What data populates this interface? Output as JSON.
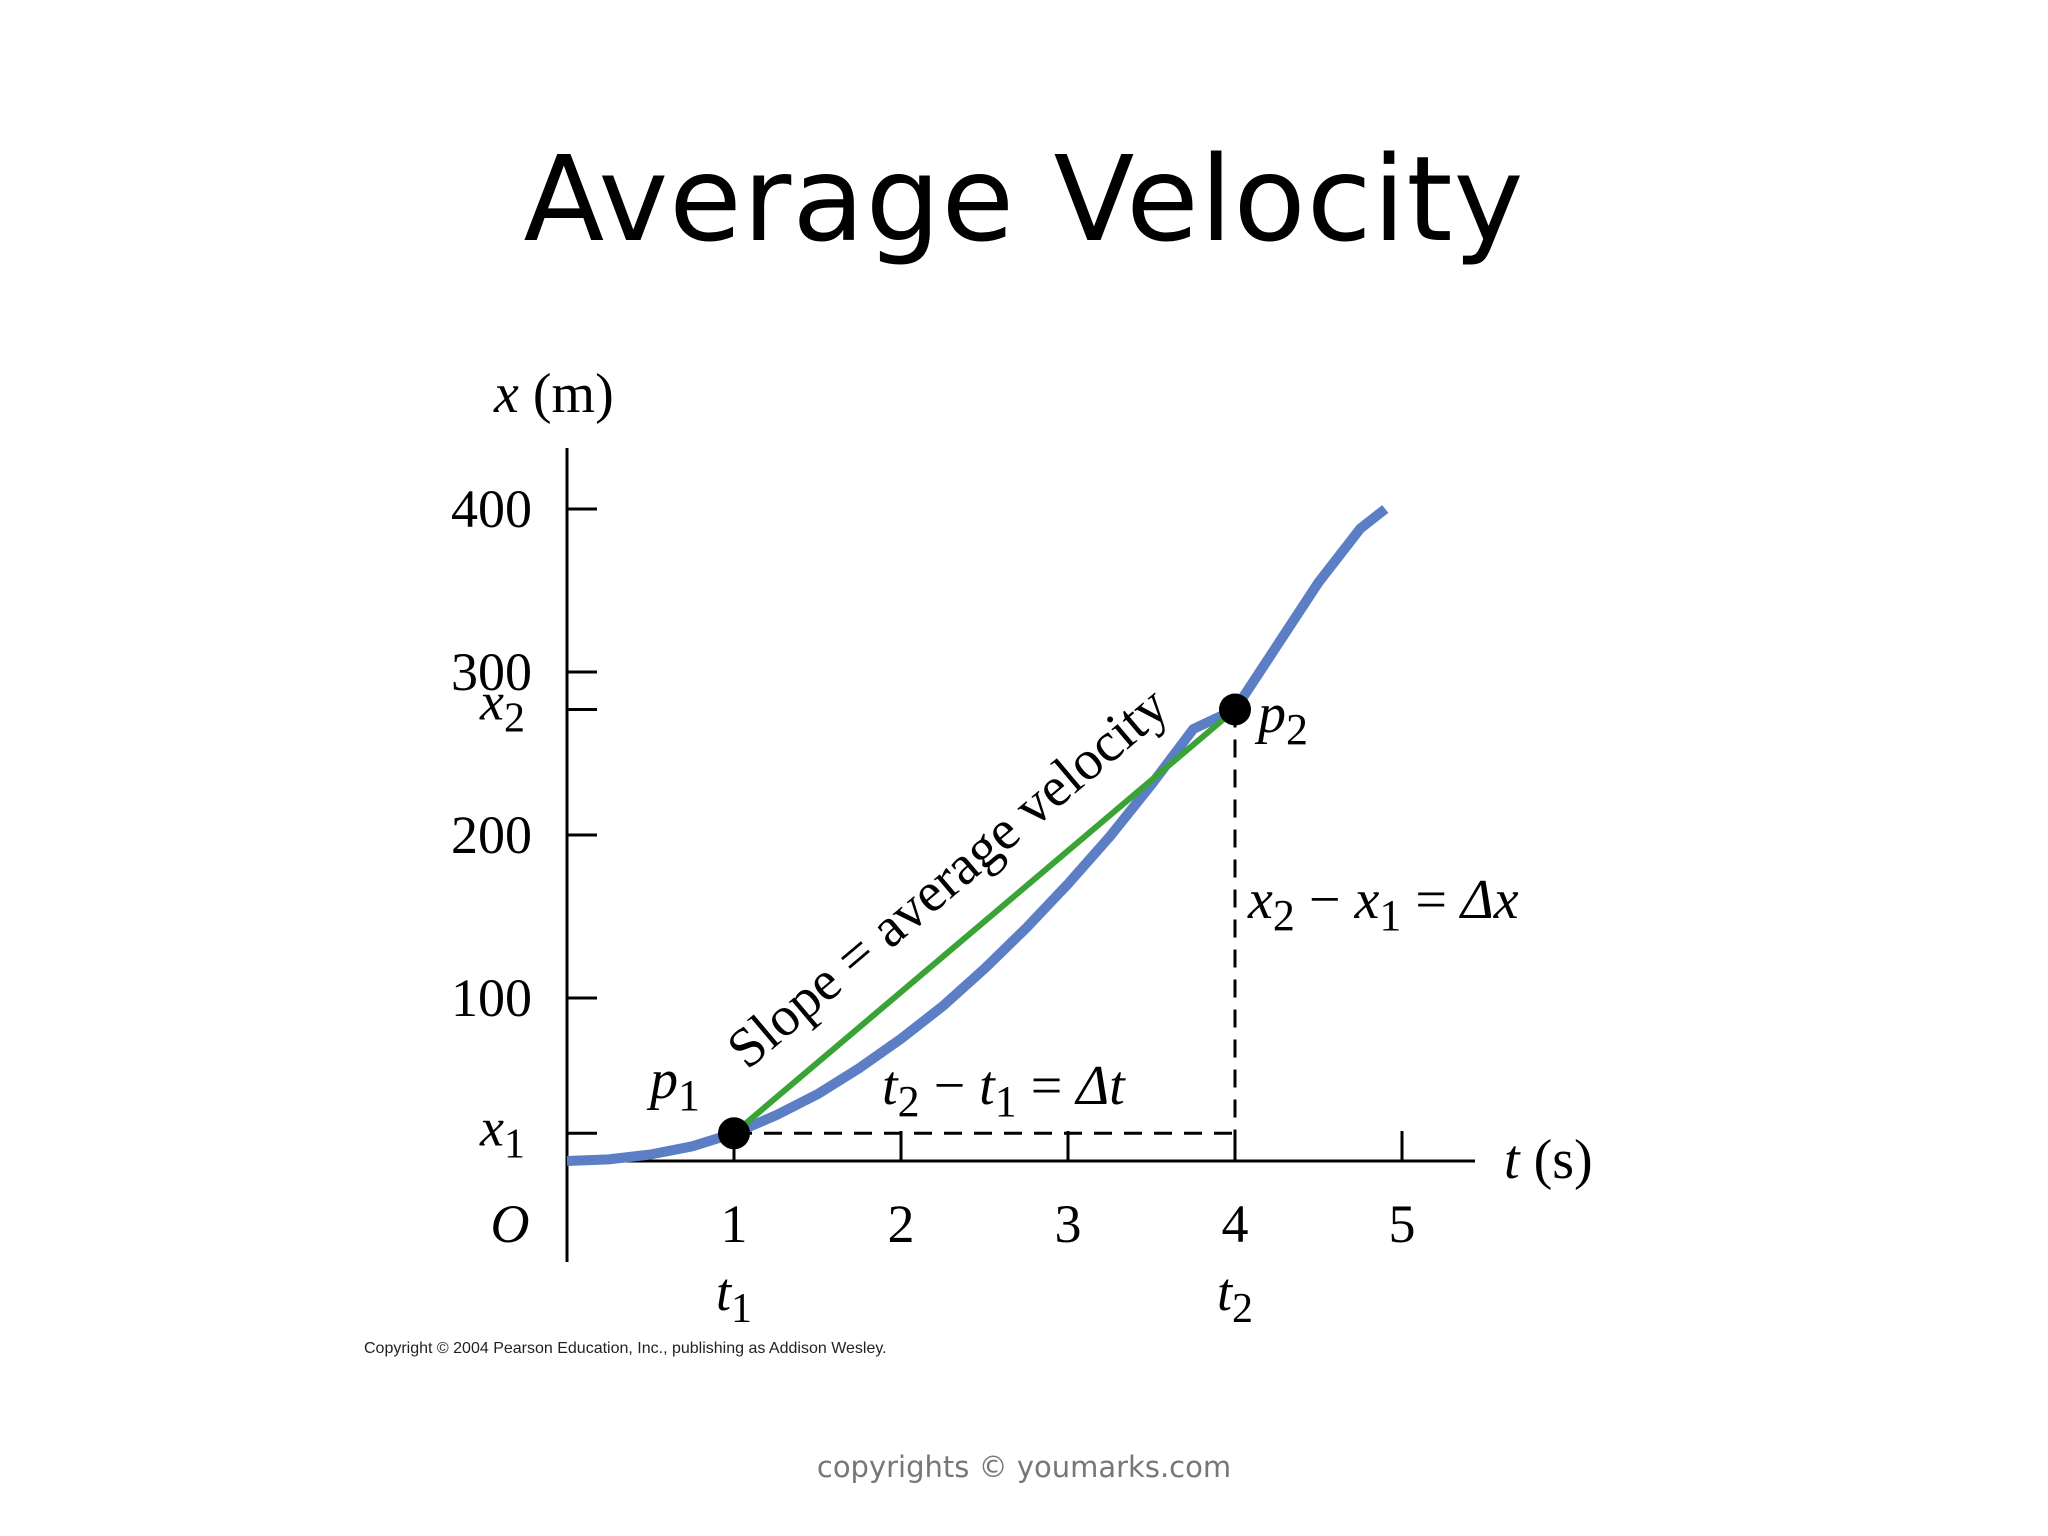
{
  "slide": {
    "title": "Average Velocity",
    "figure_copyright": "Copyright © 2004 Pearson Education, Inc., publishing as Addison Wesley.",
    "footer": "copyrights © youmarks.com"
  },
  "chart_data": {
    "type": "line",
    "title": "",
    "xlabel": "t (s)",
    "ylabel": "x (m)",
    "xlim": [
      0,
      5.4
    ],
    "ylim": [
      -20,
      440
    ],
    "x_ticks": [
      1,
      2,
      3,
      4,
      5
    ],
    "x_tick_labels": [
      "1",
      "2",
      "3",
      "4",
      "5"
    ],
    "y_ticks": [
      100,
      200,
      300,
      400
    ],
    "y_tick_labels": [
      "100",
      "200",
      "300",
      "400"
    ],
    "origin_label": "O",
    "grid": false,
    "series": [
      {
        "type": "curve",
        "color": "#5b7ec4",
        "x": [
          0,
          0.25,
          0.5,
          0.75,
          1,
          1.25,
          1.5,
          1.75,
          2,
          2.25,
          2.5,
          2.75,
          3,
          3.25,
          3.5,
          3.75,
          4,
          4.25,
          4.5,
          4.75,
          4.9
        ],
        "y": [
          0,
          1,
          4,
          9,
          17,
          28,
          41,
          57,
          75,
          95,
          118,
          143,
          170,
          199,
          231,
          265,
          277,
          316,
          355,
          388,
          400
        ]
      }
    ],
    "secant": {
      "color": "#3aa335",
      "from": [
        1,
        17
      ],
      "to": [
        4,
        277
      ],
      "label": "Slope = average velocity"
    },
    "points": [
      {
        "name": "p1",
        "label": "p",
        "sub": "1",
        "x": 1,
        "y": 17
      },
      {
        "name": "p2",
        "label": "p",
        "sub": "2",
        "x": 4,
        "y": 277
      }
    ],
    "extra_y_labels": [
      {
        "name": "x1",
        "label": "x",
        "sub": "1",
        "y": 17
      },
      {
        "name": "x2",
        "label": "x",
        "sub": "2",
        "y": 277
      }
    ],
    "extra_x_labels": [
      {
        "name": "t1",
        "label": "t",
        "sub": "1",
        "x": 1
      },
      {
        "name": "t2",
        "label": "t",
        "sub": "2",
        "x": 4
      }
    ],
    "annotations": {
      "delta_t": {
        "a": "t",
        "a_sub": "2",
        "b": "t",
        "b_sub": "1",
        "rhs": "Δt"
      },
      "delta_x": {
        "a": "x",
        "a_sub": "2",
        "b": "x",
        "b_sub": "1",
        "rhs": "Δx"
      }
    }
  }
}
